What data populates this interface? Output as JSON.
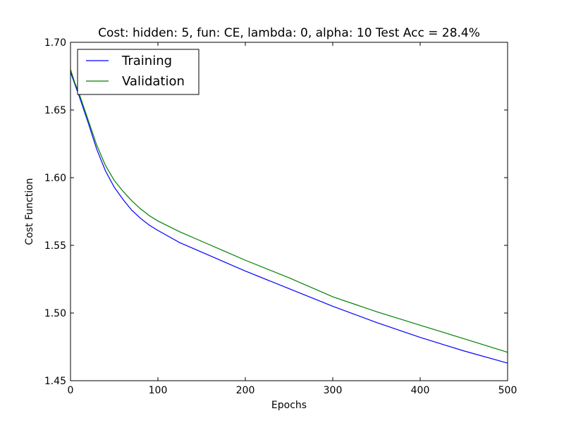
{
  "chart_data": {
    "type": "line",
    "title": "Cost: hidden: 5, fun: CE, lambda: 0, alpha: 10  Test Acc = 28.4%",
    "xlabel": "Epochs",
    "ylabel": "Cost Function",
    "xlim": [
      0,
      500
    ],
    "ylim": [
      1.45,
      1.7
    ],
    "xticks": [
      0,
      100,
      200,
      300,
      400,
      500
    ],
    "yticks": [
      1.45,
      1.5,
      1.55,
      1.6,
      1.65,
      1.7
    ],
    "ytick_labels": [
      "1.45",
      "1.50",
      "1.55",
      "1.60",
      "1.65",
      "1.70"
    ],
    "grid": false,
    "legend_position": "top-left",
    "series": [
      {
        "name": "Training",
        "color": "#0000ff",
        "x": [
          0,
          5,
          10,
          20,
          30,
          40,
          50,
          60,
          70,
          80,
          90,
          100,
          125,
          150,
          175,
          200,
          250,
          300,
          350,
          400,
          450,
          500
        ],
        "values": [
          1.678,
          1.669,
          1.66,
          1.641,
          1.621,
          1.605,
          1.593,
          1.584,
          1.576,
          1.57,
          1.565,
          1.561,
          1.552,
          1.545,
          1.538,
          1.531,
          1.518,
          1.505,
          1.493,
          1.482,
          1.472,
          1.463
        ]
      },
      {
        "name": "Validation",
        "color": "#008000",
        "x": [
          0,
          5,
          10,
          20,
          30,
          40,
          50,
          60,
          70,
          80,
          90,
          100,
          125,
          150,
          175,
          200,
          250,
          300,
          350,
          400,
          450,
          500
        ],
        "values": [
          1.68,
          1.67,
          1.662,
          1.643,
          1.624,
          1.609,
          1.598,
          1.59,
          1.583,
          1.577,
          1.572,
          1.568,
          1.56,
          1.553,
          1.546,
          1.539,
          1.526,
          1.512,
          1.501,
          1.491,
          1.481,
          1.471
        ]
      }
    ]
  }
}
